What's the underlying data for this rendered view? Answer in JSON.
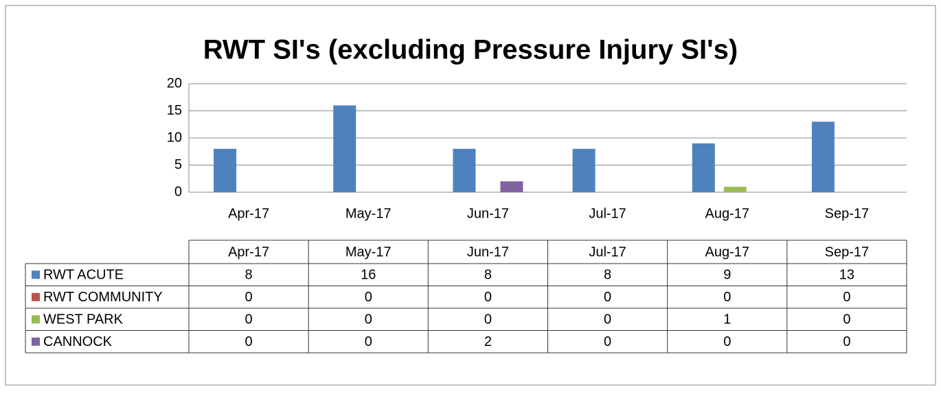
{
  "chart_data": {
    "type": "bar",
    "title": "RWT SI's (excluding Pressure Injury SI's)",
    "categories": [
      "Apr-17",
      "May-17",
      "Jun-17",
      "Jul-17",
      "Aug-17",
      "Sep-17"
    ],
    "series": [
      {
        "name": "RWT ACUTE",
        "color": "#4f81bd",
        "values": [
          8,
          16,
          8,
          8,
          9,
          13
        ]
      },
      {
        "name": "RWT COMMUNITY",
        "color": "#c0504d",
        "values": [
          0,
          0,
          0,
          0,
          0,
          0
        ]
      },
      {
        "name": "WEST PARK",
        "color": "#9bbb59",
        "values": [
          0,
          0,
          0,
          0,
          1,
          0
        ]
      },
      {
        "name": "CANNOCK",
        "color": "#8064a2",
        "values": [
          0,
          0,
          2,
          0,
          0,
          0
        ]
      }
    ],
    "ylim": [
      0,
      20
    ],
    "yticks": [
      0,
      5,
      10,
      15,
      20
    ],
    "grid": true
  }
}
